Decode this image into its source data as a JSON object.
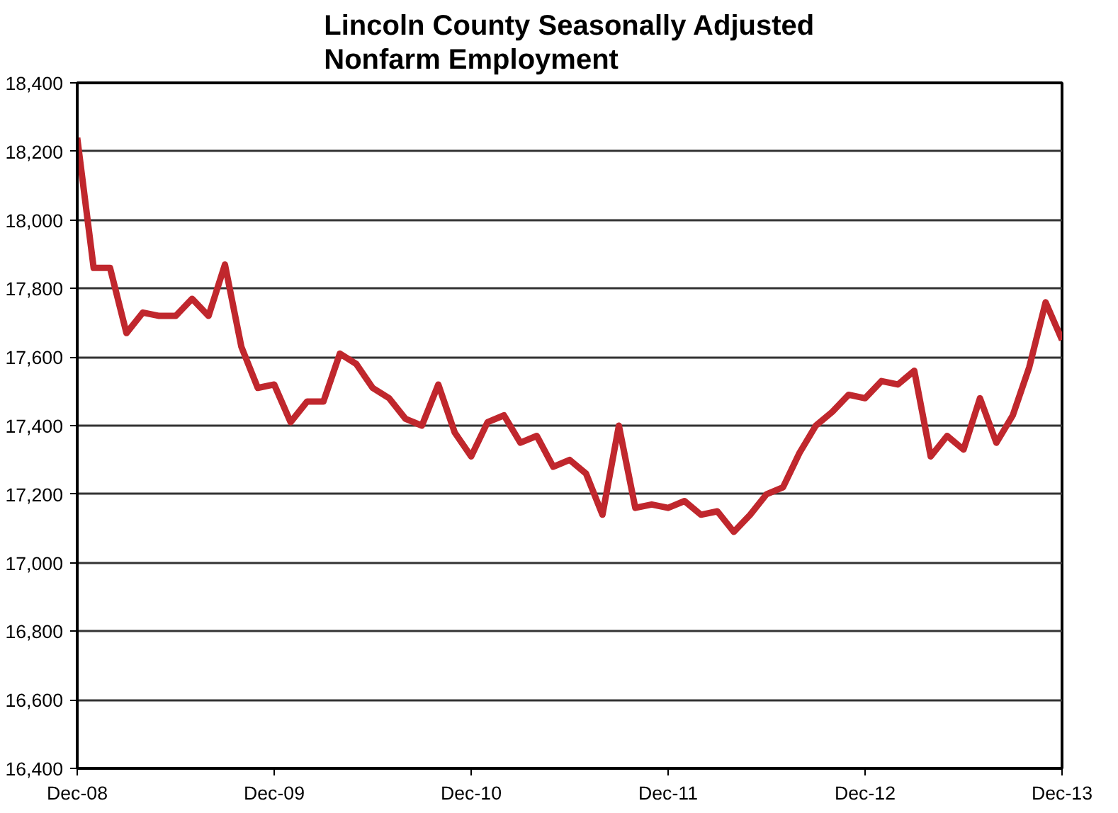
{
  "chart_data": {
    "type": "line",
    "title": "Lincoln County Seasonally Adjusted\nNonfarm Employment",
    "x": [
      "2008-12",
      "2009-01",
      "2009-02",
      "2009-03",
      "2009-04",
      "2009-05",
      "2009-06",
      "2009-07",
      "2009-08",
      "2009-09",
      "2009-10",
      "2009-11",
      "2009-12",
      "2010-01",
      "2010-02",
      "2010-03",
      "2010-04",
      "2010-05",
      "2010-06",
      "2010-07",
      "2010-08",
      "2010-09",
      "2010-10",
      "2010-11",
      "2010-12",
      "2011-01",
      "2011-02",
      "2011-03",
      "2011-04",
      "2011-05",
      "2011-06",
      "2011-07",
      "2011-08",
      "2011-09",
      "2011-10",
      "2011-11",
      "2011-12",
      "2012-01",
      "2012-02",
      "2012-03",
      "2012-04",
      "2012-05",
      "2012-06",
      "2012-07",
      "2012-08",
      "2012-09",
      "2012-10",
      "2012-11",
      "2012-12",
      "2013-01",
      "2013-02",
      "2013-03",
      "2013-04",
      "2013-05",
      "2013-06",
      "2013-07",
      "2013-08",
      "2013-09",
      "2013-10",
      "2013-11",
      "2013-12"
    ],
    "series": [
      {
        "color": "#c0272d",
        "values": [
          18240,
          17860,
          17860,
          17670,
          17730,
          17720,
          17720,
          17770,
          17720,
          17870,
          17630,
          17510,
          17520,
          17410,
          17470,
          17470,
          17610,
          17580,
          17510,
          17480,
          17420,
          17400,
          17520,
          17380,
          17310,
          17410,
          17430,
          17350,
          17370,
          17280,
          17300,
          17260,
          17140,
          17400,
          17160,
          17170,
          17160,
          17180,
          17140,
          17150,
          17090,
          17140,
          17200,
          17220,
          17320,
          17400,
          17440,
          17490,
          17480,
          17530,
          17520,
          17560,
          17310,
          17370,
          17330,
          17480,
          17350,
          17430,
          17570,
          17760,
          17650
        ]
      }
    ],
    "xlim": [
      "2008-12",
      "2013-12"
    ],
    "xticks": [
      {
        "value": "2008-12",
        "label": "Dec-08"
      },
      {
        "value": "2009-12",
        "label": "Dec-09"
      },
      {
        "value": "2010-12",
        "label": "Dec-10"
      },
      {
        "value": "2011-12",
        "label": "Dec-11"
      },
      {
        "value": "2012-12",
        "label": "Dec-12"
      },
      {
        "value": "2013-12",
        "label": "Dec-13"
      }
    ],
    "ylim": [
      16400,
      18400
    ],
    "yticks": [
      {
        "value": 16400,
        "label": "16,400"
      },
      {
        "value": 16600,
        "label": "16,600"
      },
      {
        "value": 16800,
        "label": "16,800"
      },
      {
        "value": 17000,
        "label": "17,000"
      },
      {
        "value": 17200,
        "label": "17,200"
      },
      {
        "value": 17400,
        "label": "17,400"
      },
      {
        "value": 17600,
        "label": "17,600"
      },
      {
        "value": 17800,
        "label": "17,800"
      },
      {
        "value": 18000,
        "label": "18,000"
      },
      {
        "value": 18200,
        "label": "18,200"
      },
      {
        "value": 18400,
        "label": "18,400"
      }
    ],
    "grid": "y",
    "marker": "none",
    "line_style": "solid"
  }
}
